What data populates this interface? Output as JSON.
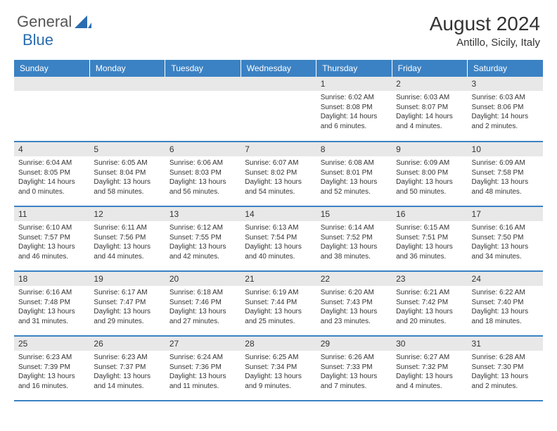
{
  "logo": {
    "text1": "General",
    "text2": "Blue"
  },
  "title": "August 2024",
  "location": "Antillo, Sicily, Italy",
  "colors": {
    "header_bg": "#3b82c4",
    "day_num_bg": "#e8e8e8",
    "row_border": "#3b82c4",
    "logo_accent": "#2a6db0"
  },
  "weekdays": [
    "Sunday",
    "Monday",
    "Tuesday",
    "Wednesday",
    "Thursday",
    "Friday",
    "Saturday"
  ],
  "first_day_index": 4,
  "days_in_month": 31,
  "days": {
    "1": {
      "sunrise": "6:02 AM",
      "sunset": "8:08 PM",
      "daylight": "14 hours and 6 minutes."
    },
    "2": {
      "sunrise": "6:03 AM",
      "sunset": "8:07 PM",
      "daylight": "14 hours and 4 minutes."
    },
    "3": {
      "sunrise": "6:03 AM",
      "sunset": "8:06 PM",
      "daylight": "14 hours and 2 minutes."
    },
    "4": {
      "sunrise": "6:04 AM",
      "sunset": "8:05 PM",
      "daylight": "14 hours and 0 minutes."
    },
    "5": {
      "sunrise": "6:05 AM",
      "sunset": "8:04 PM",
      "daylight": "13 hours and 58 minutes."
    },
    "6": {
      "sunrise": "6:06 AM",
      "sunset": "8:03 PM",
      "daylight": "13 hours and 56 minutes."
    },
    "7": {
      "sunrise": "6:07 AM",
      "sunset": "8:02 PM",
      "daylight": "13 hours and 54 minutes."
    },
    "8": {
      "sunrise": "6:08 AM",
      "sunset": "8:01 PM",
      "daylight": "13 hours and 52 minutes."
    },
    "9": {
      "sunrise": "6:09 AM",
      "sunset": "8:00 PM",
      "daylight": "13 hours and 50 minutes."
    },
    "10": {
      "sunrise": "6:09 AM",
      "sunset": "7:58 PM",
      "daylight": "13 hours and 48 minutes."
    },
    "11": {
      "sunrise": "6:10 AM",
      "sunset": "7:57 PM",
      "daylight": "13 hours and 46 minutes."
    },
    "12": {
      "sunrise": "6:11 AM",
      "sunset": "7:56 PM",
      "daylight": "13 hours and 44 minutes."
    },
    "13": {
      "sunrise": "6:12 AM",
      "sunset": "7:55 PM",
      "daylight": "13 hours and 42 minutes."
    },
    "14": {
      "sunrise": "6:13 AM",
      "sunset": "7:54 PM",
      "daylight": "13 hours and 40 minutes."
    },
    "15": {
      "sunrise": "6:14 AM",
      "sunset": "7:52 PM",
      "daylight": "13 hours and 38 minutes."
    },
    "16": {
      "sunrise": "6:15 AM",
      "sunset": "7:51 PM",
      "daylight": "13 hours and 36 minutes."
    },
    "17": {
      "sunrise": "6:16 AM",
      "sunset": "7:50 PM",
      "daylight": "13 hours and 34 minutes."
    },
    "18": {
      "sunrise": "6:16 AM",
      "sunset": "7:48 PM",
      "daylight": "13 hours and 31 minutes."
    },
    "19": {
      "sunrise": "6:17 AM",
      "sunset": "7:47 PM",
      "daylight": "13 hours and 29 minutes."
    },
    "20": {
      "sunrise": "6:18 AM",
      "sunset": "7:46 PM",
      "daylight": "13 hours and 27 minutes."
    },
    "21": {
      "sunrise": "6:19 AM",
      "sunset": "7:44 PM",
      "daylight": "13 hours and 25 minutes."
    },
    "22": {
      "sunrise": "6:20 AM",
      "sunset": "7:43 PM",
      "daylight": "13 hours and 23 minutes."
    },
    "23": {
      "sunrise": "6:21 AM",
      "sunset": "7:42 PM",
      "daylight": "13 hours and 20 minutes."
    },
    "24": {
      "sunrise": "6:22 AM",
      "sunset": "7:40 PM",
      "daylight": "13 hours and 18 minutes."
    },
    "25": {
      "sunrise": "6:23 AM",
      "sunset": "7:39 PM",
      "daylight": "13 hours and 16 minutes."
    },
    "26": {
      "sunrise": "6:23 AM",
      "sunset": "7:37 PM",
      "daylight": "13 hours and 14 minutes."
    },
    "27": {
      "sunrise": "6:24 AM",
      "sunset": "7:36 PM",
      "daylight": "13 hours and 11 minutes."
    },
    "28": {
      "sunrise": "6:25 AM",
      "sunset": "7:34 PM",
      "daylight": "13 hours and 9 minutes."
    },
    "29": {
      "sunrise": "6:26 AM",
      "sunset": "7:33 PM",
      "daylight": "13 hours and 7 minutes."
    },
    "30": {
      "sunrise": "6:27 AM",
      "sunset": "7:32 PM",
      "daylight": "13 hours and 4 minutes."
    },
    "31": {
      "sunrise": "6:28 AM",
      "sunset": "7:30 PM",
      "daylight": "13 hours and 2 minutes."
    }
  },
  "labels": {
    "sunrise": "Sunrise:",
    "sunset": "Sunset:",
    "daylight": "Daylight:"
  }
}
